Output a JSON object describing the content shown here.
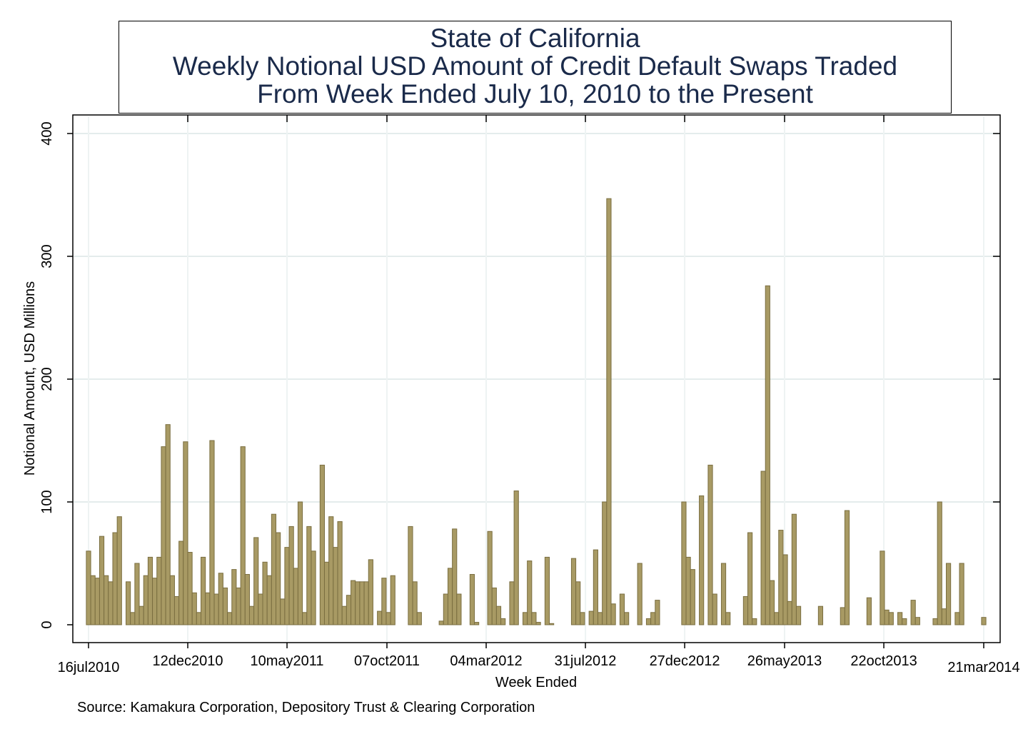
{
  "chart_data": {
    "type": "bar",
    "title_lines": [
      "State of California",
      "Weekly Notional USD Amount of Credit Default Swaps Traded",
      "From Week Ended July 10, 2010 to the Present"
    ],
    "xlabel": "Week Ended",
    "ylabel": "Notional Amount, USD Millions",
    "ylim": [
      0,
      400
    ],
    "yticks": [
      0,
      100,
      200,
      300,
      400
    ],
    "xlim": [
      "2010-07-16",
      "2014-03-21"
    ],
    "xticks": [
      "16jul2010",
      "12dec2010",
      "10may2011",
      "07oct2011",
      "04mar2012",
      "31jul2012",
      "27dec2012",
      "26may2013",
      "22oct2013",
      "21mar2014"
    ],
    "grid": true,
    "bar_color": "#a89a64",
    "bar_edge_color": "#7a6e40",
    "values": [
      60,
      40,
      38,
      72,
      40,
      35,
      75,
      88,
      0,
      35,
      10,
      50,
      15,
      40,
      55,
      38,
      55,
      145,
      163,
      40,
      23,
      68,
      149,
      59,
      26,
      10,
      55,
      26,
      150,
      25,
      42,
      30,
      10,
      45,
      30,
      145,
      41,
      15,
      71,
      25,
      51,
      40,
      90,
      75,
      21,
      63,
      80,
      46,
      100,
      10,
      80,
      60,
      0,
      130,
      51,
      88,
      63,
      84,
      15,
      24,
      36,
      35,
      35,
      35,
      53,
      0,
      11,
      38,
      10,
      40,
      0,
      0,
      0,
      80,
      35,
      10,
      0,
      0,
      0,
      0,
      3,
      25,
      46,
      78,
      25,
      0,
      0,
      41,
      2,
      0,
      0,
      76,
      30,
      15,
      5,
      0,
      35,
      109,
      0,
      10,
      52,
      10,
      2,
      0,
      55,
      1,
      0,
      0,
      0,
      0,
      54,
      35,
      10,
      0,
      11,
      61,
      10,
      100,
      347,
      17,
      0,
      25,
      10,
      0,
      0,
      50,
      0,
      5,
      10,
      20,
      0,
      0,
      0,
      0,
      0,
      100,
      55,
      45,
      0,
      105,
      0,
      130,
      25,
      0,
      50,
      10,
      0,
      0,
      0,
      23,
      75,
      5,
      0,
      125,
      276,
      36,
      10,
      77,
      57,
      19,
      90,
      15,
      0,
      0,
      0,
      0,
      15,
      0,
      0,
      0,
      0,
      14,
      93,
      0,
      0,
      0,
      0,
      22,
      0,
      0,
      60,
      12,
      10,
      0,
      10,
      5,
      0,
      20,
      6,
      0,
      0,
      0,
      5,
      100,
      13,
      50,
      0,
      10,
      50,
      0,
      0,
      0,
      0,
      6
    ]
  },
  "source_note": "Source: Kamakura Corporation, Depository Trust & Clearing Corporation"
}
